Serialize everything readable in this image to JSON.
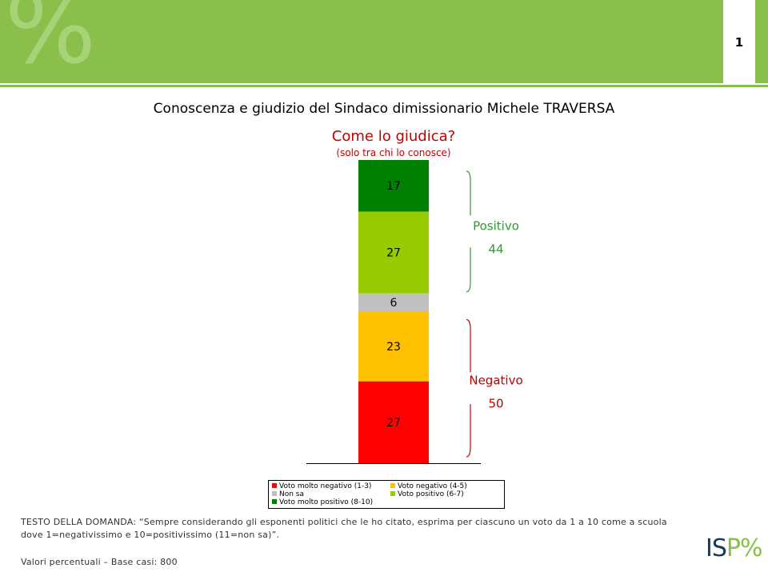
{
  "page_number": "1",
  "main_title": "Conoscenza e giudizio del Sindaco dimissionario Michele TRAVERSA",
  "chart_title": "Come lo giudica?",
  "chart_subtitle": "(solo tra chi lo conosce)",
  "chart_data": {
    "type": "bar",
    "stacked": true,
    "categories": [
      ""
    ],
    "series": [
      {
        "name": "Voto molto negativo (1-3)",
        "values": [
          27
        ],
        "color": "#ff0000"
      },
      {
        "name": "Voto negativo (4-5)",
        "values": [
          23
        ],
        "color": "#ffc000"
      },
      {
        "name": "Non sa",
        "values": [
          6
        ],
        "color": "#c0c0c0"
      },
      {
        "name": "Voto positivo (6-7)",
        "values": [
          27
        ],
        "color": "#99cc00"
      },
      {
        "name": "Voto molto positivo (8-10)",
        "values": [
          17
        ],
        "color": "#008000"
      }
    ],
    "groups": [
      {
        "label": "Positivo",
        "value": "44",
        "color": "#339933"
      },
      {
        "label": "Negativo",
        "value": "50",
        "color": "#c00000"
      }
    ],
    "legend_position": "bottom"
  },
  "question_text": "TESTO DELLA DOMANDA: “Sempre considerando gli esponenti politici che le ho citato, esprima per ciascuno un voto da 1 a 10 come a scuola dove 1=negativissimo e 10=positivissimo (11=non sa)”.",
  "base_text": "Valori percentuali – Base casi: 800",
  "logo": {
    "text": "IS",
    "accent": "P%"
  }
}
